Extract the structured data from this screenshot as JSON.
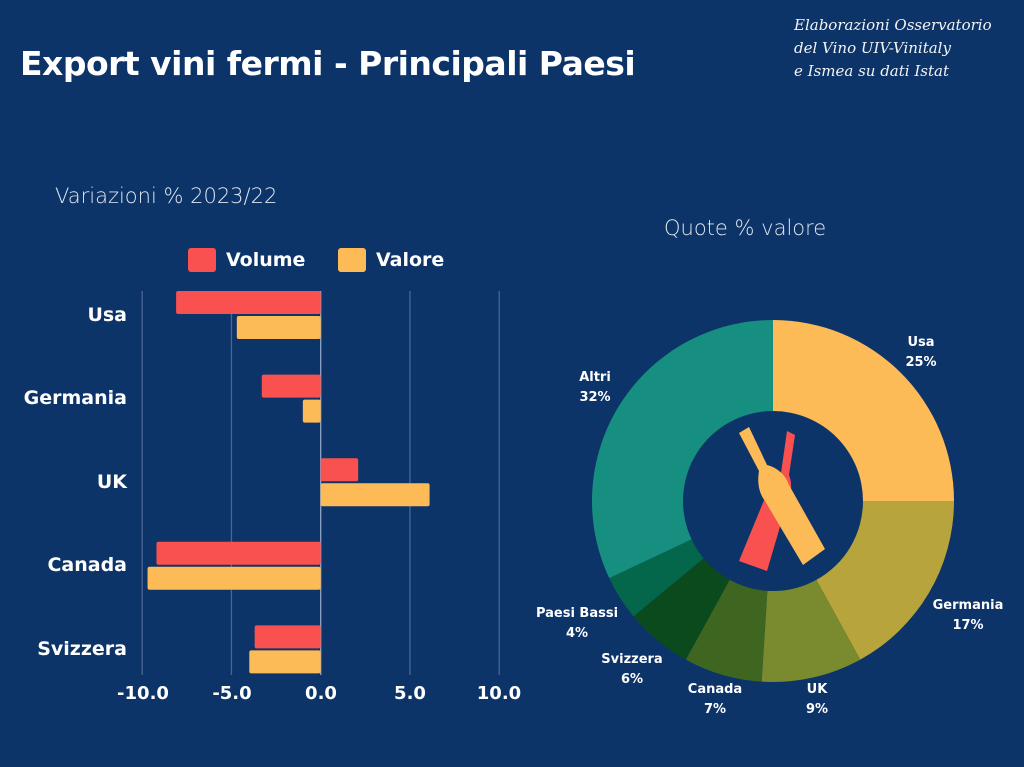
{
  "title": "Export vini fermi - Principali Paesi",
  "source": [
    "Elaborazioni Osservatorio",
    "del Vino UIV-Vinitaly",
    " e Ismea su dati Istat"
  ],
  "background_color": "#0d3468",
  "chart_data": [
    {
      "type": "bar",
      "orientation": "horizontal",
      "subtitle": "Variazioni % 2023/22",
      "categories": [
        "Usa",
        "Germania",
        "UK",
        "Canada",
        "Svizzera"
      ],
      "series": [
        {
          "name": "Volume",
          "color": "#f9514f",
          "values": [
            -8.1,
            -3.3,
            2.1,
            -9.2,
            -3.7
          ]
        },
        {
          "name": "Valore",
          "color": "#fdbb58",
          "values": [
            -4.7,
            -1.0,
            6.1,
            -9.7,
            -4.0
          ]
        }
      ],
      "xlim": [
        -10,
        10
      ],
      "xticks": [
        "-10.0",
        "-5.0",
        "0.0",
        "5.0",
        "10.0"
      ],
      "grid": true,
      "legend": "top"
    },
    {
      "type": "pie",
      "donut": true,
      "subtitle": "Quote % valore",
      "center_icon": "wine-bottles-icon",
      "slices": [
        {
          "label": "Usa",
          "value": 25,
          "text": "25%",
          "color": "#fdbb58"
        },
        {
          "label": "Germania",
          "value": 17,
          "text": "17%",
          "color": "#b8a43c"
        },
        {
          "label": "UK",
          "value": 9,
          "text": "9%",
          "color": "#7a8a2e"
        },
        {
          "label": "Canada",
          "value": 7,
          "text": "7%",
          "color": "#3f6621"
        },
        {
          "label": "Svizzera",
          "value": 6,
          "text": "6%",
          "color": "#0b4a1c"
        },
        {
          "label": "Paesi Bassi",
          "value": 4,
          "text": "4%",
          "color": "#04664a"
        },
        {
          "label": "Altri",
          "value": 32,
          "text": "32%",
          "color": "#178f80"
        }
      ]
    }
  ]
}
